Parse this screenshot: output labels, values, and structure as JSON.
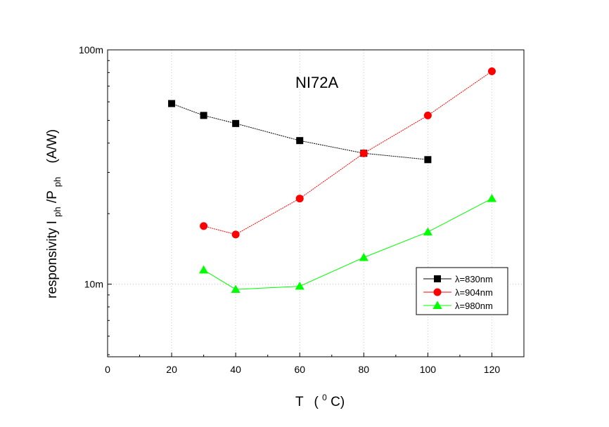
{
  "chart_data": {
    "type": "line",
    "annotation": "NI72A",
    "xlabel": "T",
    "xlabel_units": "(",
    "xlabel_units_sup": "0",
    "xlabel_units_tail": "C)",
    "ylabel_parts": {
      "prefix": "responsivity I",
      "sub1": "ph",
      "mid": "/P",
      "sub2": "ph",
      "units": "(A/W)"
    },
    "xlim": [
      0,
      130
    ],
    "ylim": [
      0.0049,
      0.1
    ],
    "y_scale": "log",
    "x_ticks": [
      0,
      20,
      40,
      60,
      80,
      100,
      120
    ],
    "x_tick_labels": [
      "0",
      "20",
      "40",
      "60",
      "80",
      "100",
      "120"
    ],
    "y_tick_labels": [
      {
        "value": 0.1,
        "label": "100m"
      },
      {
        "value": 0.01,
        "label": "10m"
      }
    ],
    "grid": true,
    "legend_position": "bottom-right",
    "series": [
      {
        "name": "λ=830nm",
        "color": "#000000",
        "marker": "square",
        "x": [
          20,
          30,
          40,
          60,
          80,
          100
        ],
        "y": [
          0.059,
          0.0525,
          0.0485,
          0.041,
          0.0362,
          0.034
        ]
      },
      {
        "name": "λ=904nm",
        "color": "#ff0000",
        "marker": "circle",
        "x": [
          30,
          40,
          60,
          80,
          100,
          120
        ],
        "y": [
          0.0177,
          0.0163,
          0.0232,
          0.0362,
          0.0525,
          0.081
        ]
      },
      {
        "name": "λ=980nm",
        "color": "#00ff00",
        "marker": "triangle",
        "x": [
          30,
          40,
          60,
          80,
          100,
          120
        ],
        "y": [
          0.0115,
          0.0095,
          0.0098,
          0.013,
          0.0167,
          0.0232
        ]
      }
    ]
  }
}
